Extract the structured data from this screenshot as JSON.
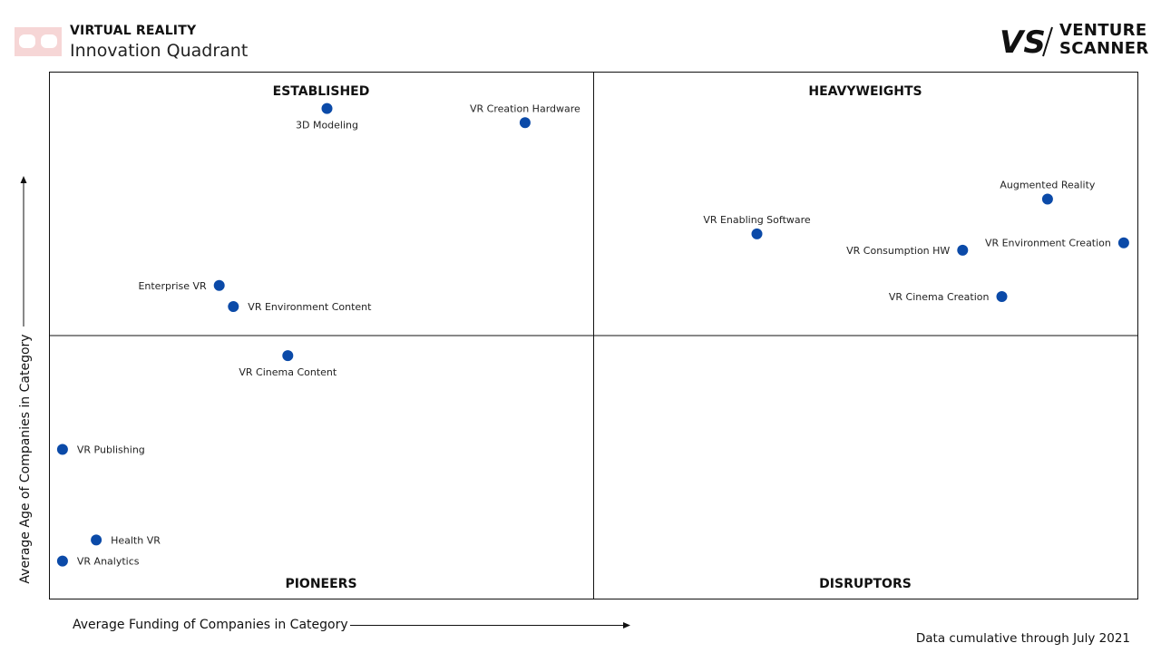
{
  "header": {
    "category": "VIRTUAL REALITY",
    "subtitle": "Innovation Quadrant"
  },
  "brand": {
    "mark": "VS",
    "line1": "VENTURE",
    "line2": "SCANNER"
  },
  "footnote": "Data cumulative through July 2021",
  "colors": {
    "dot": "#0b4aa8",
    "logo_pink": "#f6d6d6",
    "border": "#111111"
  },
  "chart_data": {
    "type": "scatter",
    "title": "",
    "xlabel": "Average Funding of Companies in Category",
    "ylabel": "Average Age of Companies in Category",
    "xlim": [
      0,
      100
    ],
    "ylim": [
      0,
      100
    ],
    "grid": false,
    "quadrants": {
      "top_left": "ESTABLISHED",
      "top_right": "HEAVYWEIGHTS",
      "bottom_left": "PIONEERS",
      "bottom_right": "DISRUPTORS"
    },
    "points": [
      {
        "label": "3D Modeling",
        "x": 25.5,
        "y": 93.1,
        "label_pos": "below"
      },
      {
        "label": "VR Creation Hardware",
        "x": 43.7,
        "y": 90.4,
        "label_pos": "above"
      },
      {
        "label": "Augmented Reality",
        "x": 91.7,
        "y": 75.9,
        "label_pos": "above"
      },
      {
        "label": "VR Enabling Software",
        "x": 65.0,
        "y": 69.3,
        "label_pos": "above"
      },
      {
        "label": "VR Environment Creation",
        "x": 98.7,
        "y": 67.6,
        "label_pos": "left"
      },
      {
        "label": "VR Consumption HW",
        "x": 83.9,
        "y": 66.2,
        "label_pos": "left"
      },
      {
        "label": "VR Cinema Creation",
        "x": 87.5,
        "y": 57.4,
        "label_pos": "left"
      },
      {
        "label": "Enterprise VR",
        "x": 15.6,
        "y": 59.5,
        "label_pos": "left"
      },
      {
        "label": "VR Environment Content",
        "x": 16.9,
        "y": 55.5,
        "label_pos": "right"
      },
      {
        "label": "VR Cinema Content",
        "x": 21.9,
        "y": 46.2,
        "label_pos": "below"
      },
      {
        "label": "VR Publishing",
        "x": 1.2,
        "y": 28.4,
        "label_pos": "right"
      },
      {
        "label": "Health VR",
        "x": 4.3,
        "y": 11.2,
        "label_pos": "right"
      },
      {
        "label": "VR Analytics",
        "x": 1.2,
        "y": 7.2,
        "label_pos": "right"
      }
    ]
  }
}
